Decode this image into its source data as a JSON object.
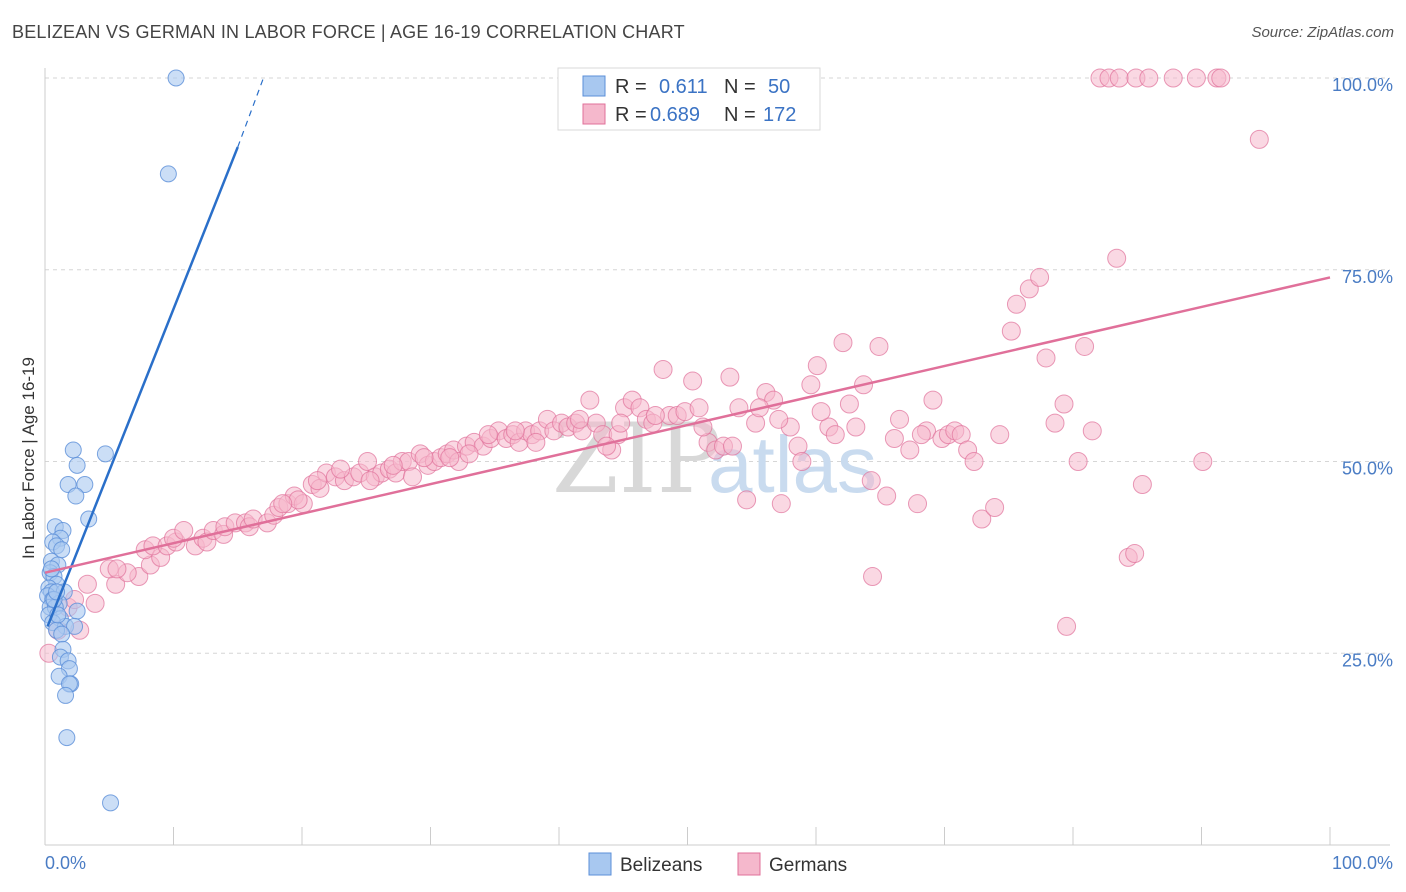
{
  "title": "BELIZEAN VS GERMAN IN LABOR FORCE | AGE 16-19 CORRELATION CHART",
  "source": "Source: ZipAtlas.com",
  "colors": {
    "blue": "#5b8fd8",
    "blue_fill": "#a8c8f0",
    "blue_line": "#2a6fc9",
    "pink": "#e0709a",
    "pink_fill": "#f5b8cc",
    "pink_line": "#e0709a",
    "axis_text": "#4a7cc4"
  },
  "watermark": {
    "zip": "ZIP",
    "atlas": "atlas"
  },
  "legend": {
    "rows": [
      {
        "r_label": "R =",
        "r_value": "0.611",
        "n_label": "N =",
        "n_value": "50"
      },
      {
        "r_label": "R =",
        "r_value": "0.689",
        "n_label": "N =",
        "n_value": "172"
      }
    ]
  },
  "bottom_legend": [
    "Belizeans",
    "Germans"
  ],
  "chart_data": {
    "type": "scatter",
    "xlabel": "",
    "ylabel": "In Labor Force | Age 16-19",
    "xlim": [
      0,
      100
    ],
    "ylim": [
      0,
      102
    ],
    "x_tick_labels": [
      "0.0%",
      "100.0%"
    ],
    "y_ticks": [
      25,
      50,
      75,
      100
    ],
    "y_tick_labels": [
      "25.0%",
      "50.0%",
      "75.0%",
      "100.0%"
    ],
    "grid": true,
    "legend_placement": "top-center",
    "series": [
      {
        "name": "Belizeans",
        "r": 0.611,
        "n": 50,
        "trend": {
          "x0": 0.2,
          "y0": 28.5,
          "x1": 15,
          "y1": 91,
          "dash_to_x": 17,
          "dash_to_y": 100
        },
        "points": [
          [
            10.2,
            100
          ],
          [
            9.6,
            87.5
          ],
          [
            2.2,
            51.5
          ],
          [
            4.7,
            51
          ],
          [
            2.5,
            49.5
          ],
          [
            1.8,
            47
          ],
          [
            3.1,
            47
          ],
          [
            2.4,
            45.5
          ],
          [
            3.4,
            42.5
          ],
          [
            0.8,
            41.5
          ],
          [
            1.4,
            41
          ],
          [
            1.2,
            40
          ],
          [
            0.6,
            39.5
          ],
          [
            0.9,
            39
          ],
          [
            1.3,
            38.5
          ],
          [
            0.5,
            37
          ],
          [
            1.0,
            36.5
          ],
          [
            0.4,
            35.5
          ],
          [
            0.7,
            35
          ],
          [
            0.9,
            34
          ],
          [
            0.3,
            33.5
          ],
          [
            0.5,
            33
          ],
          [
            1.5,
            33
          ],
          [
            0.2,
            32.5
          ],
          [
            0.6,
            32
          ],
          [
            1.1,
            31.5
          ],
          [
            0.4,
            31
          ],
          [
            0.8,
            31
          ],
          [
            2.5,
            30.5
          ],
          [
            0.3,
            30
          ],
          [
            1.2,
            29.5
          ],
          [
            0.6,
            29
          ],
          [
            1.6,
            28.5
          ],
          [
            2.3,
            28.5
          ],
          [
            0.9,
            28
          ],
          [
            1.3,
            27.5
          ],
          [
            1.4,
            25.5
          ],
          [
            1.2,
            24.5
          ],
          [
            1.8,
            24
          ],
          [
            1.9,
            23
          ],
          [
            1.1,
            22
          ],
          [
            2.0,
            21
          ],
          [
            1.9,
            21
          ],
          [
            1.6,
            19.5
          ],
          [
            1.7,
            14
          ],
          [
            5.1,
            5.5
          ],
          [
            0.5,
            36
          ],
          [
            0.7,
            32
          ],
          [
            1.0,
            30
          ],
          [
            0.9,
            33
          ]
        ]
      },
      {
        "name": "Germans",
        "r": 0.689,
        "n": 172,
        "trend": {
          "x0": 0,
          "y0": 35.5,
          "x1": 100,
          "y1": 74
        },
        "points": [
          [
            0.3,
            25
          ],
          [
            1.0,
            28
          ],
          [
            2.7,
            28
          ],
          [
            1.8,
            31
          ],
          [
            3.9,
            31.5
          ],
          [
            2.3,
            32
          ],
          [
            5.5,
            34
          ],
          [
            3.3,
            34
          ],
          [
            7.3,
            35
          ],
          [
            6.4,
            35.5
          ],
          [
            5.0,
            36
          ],
          [
            5.6,
            36
          ],
          [
            8.2,
            36.5
          ],
          [
            7.8,
            38.5
          ],
          [
            9.0,
            37.5
          ],
          [
            8.4,
            39
          ],
          [
            9.5,
            39
          ],
          [
            10.2,
            39.5
          ],
          [
            10.0,
            40
          ],
          [
            10.8,
            41
          ],
          [
            11.7,
            39
          ],
          [
            12.3,
            40
          ],
          [
            12.6,
            39.5
          ],
          [
            13.1,
            41
          ],
          [
            13.9,
            40.5
          ],
          [
            14.0,
            41.5
          ],
          [
            14.8,
            42
          ],
          [
            15.6,
            42
          ],
          [
            15.9,
            41.5
          ],
          [
            16.2,
            42.5
          ],
          [
            17.3,
            42
          ],
          [
            17.8,
            43
          ],
          [
            18.2,
            44
          ],
          [
            18.9,
            44.5
          ],
          [
            19.4,
            45.5
          ],
          [
            20.1,
            44.5
          ],
          [
            20.8,
            47
          ],
          [
            21.4,
            46.5
          ],
          [
            21.9,
            48.5
          ],
          [
            22.6,
            48
          ],
          [
            23.3,
            47.5
          ],
          [
            24.0,
            48
          ],
          [
            24.5,
            48.5
          ],
          [
            25.1,
            50
          ],
          [
            25.7,
            48
          ],
          [
            26.2,
            48.5
          ],
          [
            26.8,
            49
          ],
          [
            27.3,
            48.5
          ],
          [
            27.8,
            50
          ],
          [
            28.3,
            50
          ],
          [
            28.6,
            48
          ],
          [
            29.2,
            51
          ],
          [
            29.8,
            49.5
          ],
          [
            30.3,
            50
          ],
          [
            30.8,
            50.5
          ],
          [
            31.3,
            51
          ],
          [
            31.8,
            51.5
          ],
          [
            32.2,
            50
          ],
          [
            32.8,
            52
          ],
          [
            33.4,
            52.5
          ],
          [
            34.1,
            52
          ],
          [
            34.7,
            53
          ],
          [
            35.3,
            54
          ],
          [
            35.9,
            53
          ],
          [
            36.4,
            53.5
          ],
          [
            36.9,
            52.5
          ],
          [
            37.4,
            54
          ],
          [
            37.9,
            53.5
          ],
          [
            38.5,
            54
          ],
          [
            39.1,
            55.5
          ],
          [
            39.6,
            54
          ],
          [
            40.2,
            55
          ],
          [
            40.7,
            54.5
          ],
          [
            41.3,
            55
          ],
          [
            41.8,
            54
          ],
          [
            42.4,
            58
          ],
          [
            42.9,
            55
          ],
          [
            43.4,
            53.5
          ],
          [
            44.1,
            51.5
          ],
          [
            44.6,
            53.5
          ],
          [
            45.1,
            57
          ],
          [
            45.7,
            58
          ],
          [
            46.3,
            57
          ],
          [
            46.8,
            55.5
          ],
          [
            47.3,
            55
          ],
          [
            48.1,
            62
          ],
          [
            48.6,
            56
          ],
          [
            49.2,
            56
          ],
          [
            49.8,
            56.5
          ],
          [
            50.4,
            60.5
          ],
          [
            50.9,
            57
          ],
          [
            51.6,
            52.5
          ],
          [
            52.2,
            51.5
          ],
          [
            52.8,
            52
          ],
          [
            53.3,
            61
          ],
          [
            54.0,
            57
          ],
          [
            54.6,
            45
          ],
          [
            55.3,
            55
          ],
          [
            56.1,
            59
          ],
          [
            56.7,
            58
          ],
          [
            57.3,
            44.5
          ],
          [
            58.0,
            54.5
          ],
          [
            58.6,
            52
          ],
          [
            58.9,
            50
          ],
          [
            59.6,
            60
          ],
          [
            60.1,
            62.5
          ],
          [
            61.0,
            54.5
          ],
          [
            61.5,
            53.5
          ],
          [
            62.1,
            65.5
          ],
          [
            62.6,
            57.5
          ],
          [
            63.1,
            54.5
          ],
          [
            63.7,
            60
          ],
          [
            64.3,
            47.5
          ],
          [
            64.9,
            65
          ],
          [
            65.5,
            45.5
          ],
          [
            66.1,
            53
          ],
          [
            66.5,
            55.5
          ],
          [
            67.3,
            51.5
          ],
          [
            67.9,
            44.5
          ],
          [
            68.6,
            54
          ],
          [
            69.1,
            58
          ],
          [
            69.8,
            53
          ],
          [
            70.3,
            53.5
          ],
          [
            70.8,
            54
          ],
          [
            71.3,
            53.5
          ],
          [
            71.8,
            51.5
          ],
          [
            72.3,
            50
          ],
          [
            72.9,
            42.5
          ],
          [
            73.9,
            44
          ],
          [
            74.3,
            53.5
          ],
          [
            75.2,
            67
          ],
          [
            75.6,
            70.5
          ],
          [
            76.6,
            72.5
          ],
          [
            77.4,
            74
          ],
          [
            77.9,
            63.5
          ],
          [
            78.6,
            55
          ],
          [
            79.3,
            57.5
          ],
          [
            80.4,
            50
          ],
          [
            80.9,
            65
          ],
          [
            81.5,
            54
          ],
          [
            82.1,
            100
          ],
          [
            82.8,
            100
          ],
          [
            83.6,
            100
          ],
          [
            84.9,
            100
          ],
          [
            85.9,
            100
          ],
          [
            87.8,
            100
          ],
          [
            89.6,
            100
          ],
          [
            91.2,
            100
          ],
          [
            91.5,
            100
          ],
          [
            94.5,
            92
          ],
          [
            83.4,
            76.5
          ],
          [
            84.3,
            37.5
          ],
          [
            84.8,
            38
          ],
          [
            85.4,
            47
          ],
          [
            90.1,
            50
          ],
          [
            79.5,
            28.5
          ],
          [
            64.4,
            35
          ],
          [
            68.2,
            53.5
          ],
          [
            60.4,
            56.5
          ],
          [
            57.1,
            55.5
          ],
          [
            55.6,
            57
          ],
          [
            53.5,
            52
          ],
          [
            51.2,
            54.5
          ],
          [
            47.5,
            56
          ],
          [
            44.8,
            55
          ],
          [
            43.7,
            52
          ],
          [
            41.6,
            55.5
          ],
          [
            38.2,
            52.5
          ],
          [
            36.6,
            54
          ],
          [
            34.5,
            53.5
          ],
          [
            33.0,
            51
          ],
          [
            31.5,
            50.5
          ],
          [
            29.5,
            50.5
          ],
          [
            27.1,
            49.5
          ],
          [
            25.3,
            47.5
          ],
          [
            23.0,
            49
          ],
          [
            21.2,
            47.5
          ],
          [
            19.7,
            45
          ],
          [
            18.5,
            44.5
          ]
        ]
      }
    ]
  }
}
